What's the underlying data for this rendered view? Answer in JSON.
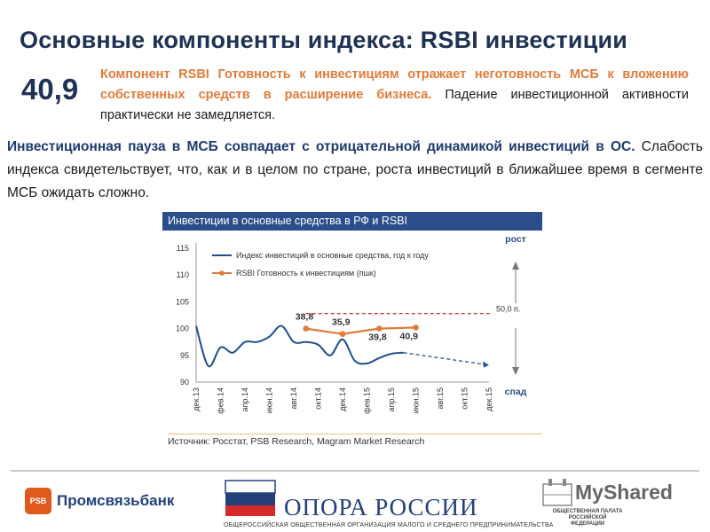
{
  "title": "Основные компоненты индекса: RSBI инвестиции",
  "value": "40,9",
  "lead": {
    "highlight": "Компонент RSBI Готовность к инвестициям отражает неготовность МСБ к вложению собственных средств в расширение бизнеса.",
    "rest": "Падение инвестиционной активности практически не замедляется."
  },
  "para": {
    "highlight": "Инвестиционная пауза в МСБ совпадает с отрицательной динамикой инвестиций в ОС.",
    "rest": "Слабость индекса свидетельствует, что, как и в целом по стране, роста инвестиций в ближайшее время в сегменте МСБ ожидать сложно."
  },
  "chart_header": "Инвестиции в основные средства в РФ и RSBI",
  "source": "Источник: Росстат, PSB Research, Magram Market Research",
  "colors": {
    "index_line": "#1f4e8c",
    "rsbi_line": "#e07b39",
    "threshold": "#c00000",
    "header": "#2b4d8b"
  },
  "chart_data": {
    "type": "line",
    "title": "Инвестиции в основные средства в РФ и RSBI",
    "x_ticks": [
      "дек.13",
      "фев.14",
      "апр.14",
      "июн.14",
      "авг.14",
      "окт.14",
      "дек.14",
      "фев.15",
      "апр.15",
      "июн.15",
      "авг.15",
      "окт.15",
      "дек.15"
    ],
    "ylim": [
      90,
      115
    ],
    "y_ticks": [
      90,
      95,
      100,
      105,
      110,
      115
    ],
    "grid": false,
    "legend": "top-left",
    "series": [
      {
        "name": "Индекс инвестиций в основные средства, год к году",
        "x": [
          "2013-12",
          "2014-01",
          "2014-02",
          "2014-03",
          "2014-04",
          "2014-05",
          "2014-06",
          "2014-07",
          "2014-08",
          "2014-09",
          "2014-10",
          "2014-11",
          "2014-12",
          "2015-01",
          "2015-02",
          "2015-03",
          "2015-04",
          "2015-05"
        ],
        "values": [
          100.5,
          93,
          96.5,
          95.5,
          97.5,
          97.5,
          98.5,
          100.5,
          97.5,
          97.5,
          97,
          95,
          98,
          94,
          93.5,
          94.5,
          95.3,
          95.5
        ]
      },
      {
        "name": "Прогноз",
        "x": [
          "2015-05",
          "2015-12"
        ],
        "values": [
          95.5,
          93.2
        ]
      },
      {
        "name": "RSBI Готовность к инвестициям (пшк)",
        "x": [
          "2014-09",
          "2014-12",
          "2015-03",
          "2015-06"
        ],
        "values": [
          100,
          99,
          100,
          100.2
        ],
        "labels": [
          "38,8",
          "35,9",
          "39,8",
          "40,9"
        ]
      }
    ],
    "threshold": {
      "value": 102.8,
      "label": "50,0 п."
    },
    "side_labels": {
      "up": "рост",
      "down": "спад"
    }
  },
  "footer": {
    "psb_mark": "PSB",
    "psb_name": "Промсвязьбанк",
    "opora_name": "ОПОРА РОССИИ",
    "opora_sub": "ОБЩЕРОССИЙСКАЯ ОБЩЕСТВЕННАЯ ОРГАНИЗАЦИЯ МАЛОГО И СРЕДНЕГО ПРЕДПРИНИМАТЕЛЬСТВА",
    "chamber": "ОБЩЕСТВЕННАЯ ПАЛАТА РОССИЙСКОЙ ФЕДЕРАЦИИ",
    "shared": "MyShared"
  }
}
